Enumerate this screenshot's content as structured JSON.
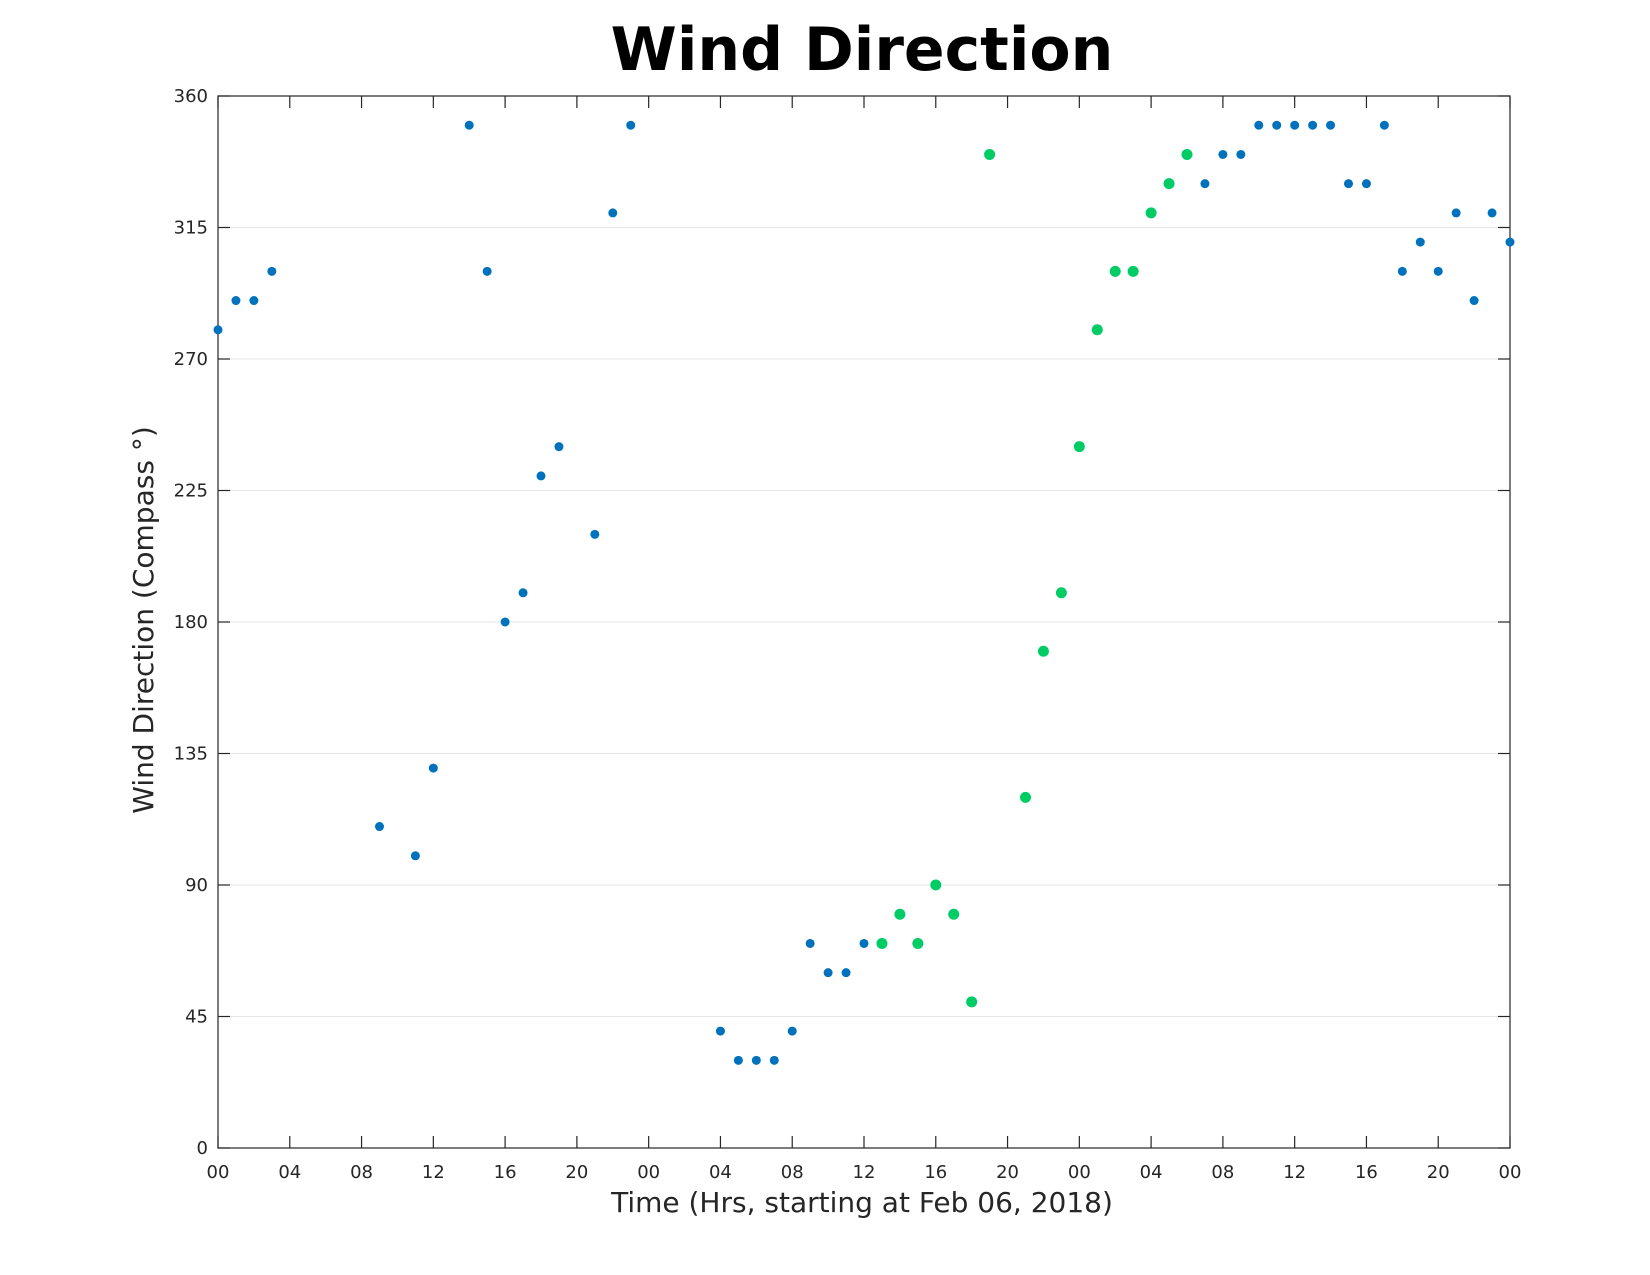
{
  "chart_data": {
    "type": "scatter",
    "title": "Wind Direction",
    "xlabel": "Time (Hrs, starting at Feb 06, 2018)",
    "ylabel": "Wind Direction (Compass °)",
    "xlim": [
      0,
      72
    ],
    "ylim": [
      0,
      360
    ],
    "x_unit": "hours since Feb 06, 2018 00:00",
    "xticks": [
      0,
      4,
      8,
      12,
      16,
      20,
      24,
      28,
      32,
      36,
      40,
      44,
      48,
      52,
      56,
      60,
      64,
      68,
      72
    ],
    "xtick_labels": [
      "00",
      "04",
      "08",
      "12",
      "16",
      "20",
      "00",
      "04",
      "08",
      "12",
      "16",
      "20",
      "00",
      "04",
      "08",
      "12",
      "16",
      "20",
      "00"
    ],
    "yticks": [
      0,
      45,
      90,
      135,
      180,
      225,
      270,
      315,
      360
    ],
    "ytick_labels": [
      "0",
      "45",
      "90",
      "135",
      "180",
      "225",
      "270",
      "315",
      "360"
    ],
    "grid": "horizontal",
    "series": [
      {
        "color": "#0072BD",
        "x": [
          0,
          1,
          2,
          3,
          9,
          11,
          12,
          14,
          15,
          16,
          17,
          18,
          19,
          21,
          22,
          23,
          28,
          29,
          30,
          31,
          32,
          33,
          34,
          35,
          36,
          55,
          56,
          57,
          58,
          59,
          60,
          61,
          62,
          63,
          64,
          65,
          66,
          67,
          68,
          69,
          70,
          71,
          72
        ],
        "y": [
          280,
          290,
          290,
          300,
          110,
          100,
          130,
          350,
          300,
          180,
          190,
          230,
          240,
          210,
          320,
          350,
          40,
          30,
          30,
          30,
          40,
          70,
          60,
          60,
          70,
          330,
          340,
          340,
          350,
          350,
          350,
          350,
          350,
          330,
          330,
          350,
          300,
          310,
          300,
          320,
          290,
          320,
          310
        ]
      },
      {
        "color": "#00CC66",
        "x": [
          37,
          38,
          39,
          40,
          41,
          42,
          43,
          45,
          46,
          47,
          48,
          49,
          50,
          51,
          52,
          53,
          54
        ],
        "y": [
          70,
          80,
          70,
          90,
          80,
          50,
          340,
          120,
          170,
          190,
          240,
          280,
          300,
          300,
          320,
          330,
          340
        ]
      }
    ]
  }
}
